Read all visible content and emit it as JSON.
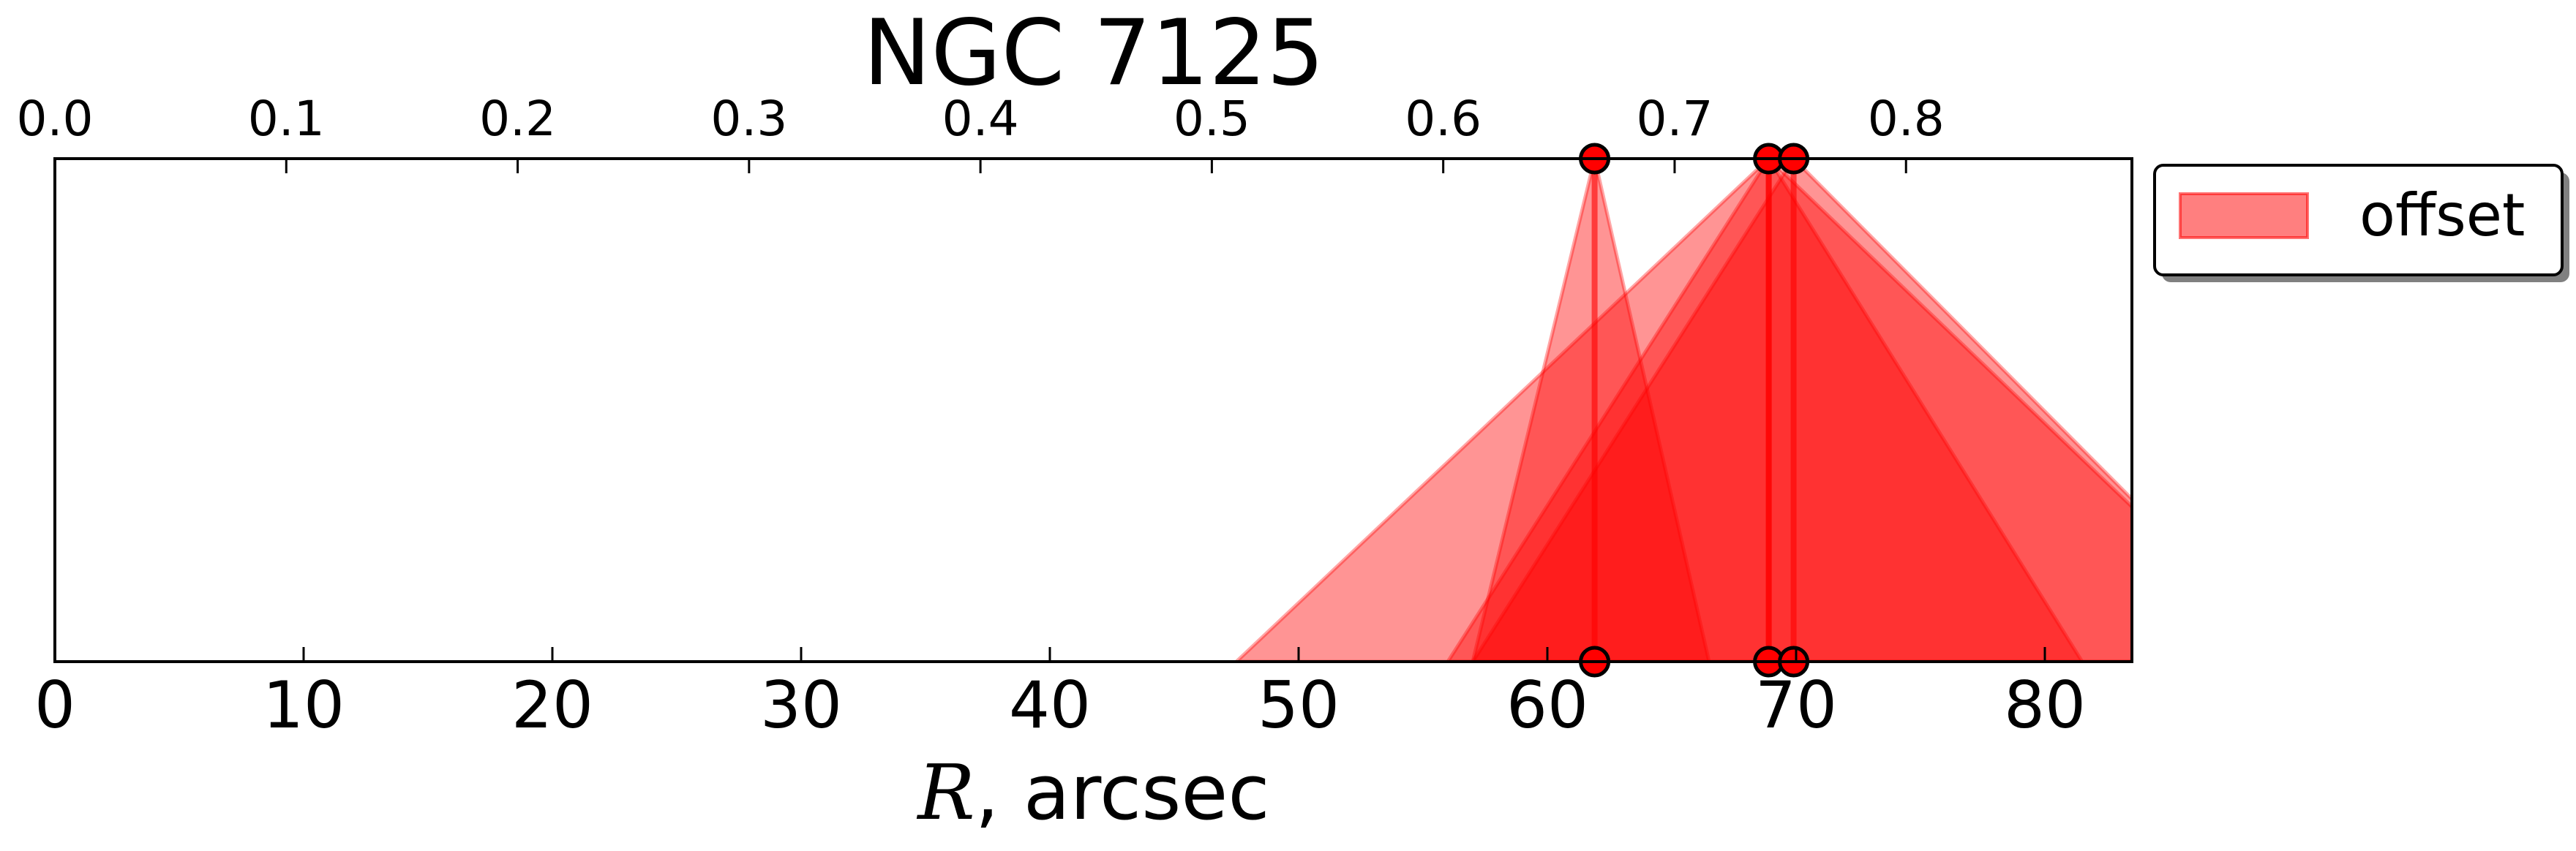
{
  "chart_data": {
    "type": "area",
    "title": "NGC 7125",
    "xlabel": "R, arcsec",
    "xlabel_italic_part": "R",
    "xlabel_rest": ", arcsec",
    "xlim": [
      0,
      83.5
    ],
    "x_ticks": [
      0,
      10,
      20,
      30,
      40,
      50,
      60,
      70,
      80
    ],
    "x_tick_labels": [
      "0",
      "10",
      "20",
      "30",
      "40",
      "50",
      "60",
      "70",
      "80"
    ],
    "top_axis": {
      "ticks": [
        0.0,
        0.1,
        0.2,
        0.3,
        0.4,
        0.5,
        0.6,
        0.7,
        0.8
      ],
      "tick_labels": [
        "0.0",
        "0.1",
        "0.2",
        "0.3",
        "0.4",
        "0.5",
        "0.6",
        "0.7",
        "0.8"
      ],
      "units_per_bottom_unit": 0.01075
    },
    "legend": {
      "entries": [
        "offset"
      ],
      "placement": "outside-upper-right"
    },
    "color": "#ff0000",
    "fill_opacity": 0.42,
    "grid": false,
    "series": [
      {
        "name": "offset",
        "peak_x": 61.9,
        "base_left": 57.0,
        "base_right": 66.5
      },
      {
        "name": "offset",
        "peak_x": 68.9,
        "base_left": 47.5,
        "base_right": 90.0
      },
      {
        "name": "offset",
        "peak_x": 68.9,
        "base_left": 56.0,
        "base_right": 81.5
      },
      {
        "name": "offset",
        "peak_x": 69.9,
        "base_left": 57.0,
        "base_right": 90.0
      }
    ],
    "markers_x": [
      61.9,
      68.9,
      69.9
    ]
  }
}
